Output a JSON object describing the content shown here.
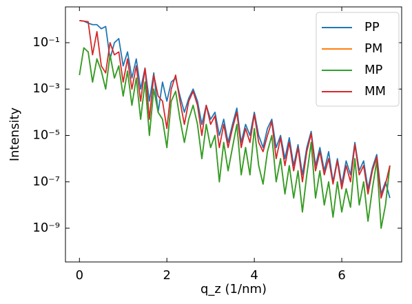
{
  "chart_data": {
    "type": "line",
    "xlabel": "q_z (1/nm)",
    "ylabel": "Intensity",
    "yscale": "log",
    "legend": "upper right",
    "xlim": [
      -0.32,
      7.37
    ],
    "xticks": [
      0,
      2,
      4,
      6
    ],
    "ylim": [
      3.5e-11,
      3.5
    ],
    "yticks": [
      {
        "value": 1e-09,
        "label": "10⁻⁹"
      },
      {
        "value": 1e-07,
        "label": "10⁻⁷"
      },
      {
        "value": 1e-05,
        "label": "10⁻⁵"
      },
      {
        "value": 0.001,
        "label": "10⁻³"
      },
      {
        "value": 0.1,
        "label": "10⁻¹"
      }
    ],
    "x": [
      0,
      0.1,
      0.2,
      0.3,
      0.4,
      0.5,
      0.6,
      0.7,
      0.8,
      0.9,
      1,
      1.1,
      1.2,
      1.3,
      1.4,
      1.5,
      1.6,
      1.7,
      1.8,
      1.9,
      2,
      2.1,
      2.2,
      2.3,
      2.4,
      2.5,
      2.6,
      2.7,
      2.8,
      2.9,
      3,
      3.1,
      3.2,
      3.3,
      3.4,
      3.5,
      3.6,
      3.7,
      3.8,
      3.9,
      4,
      4.1,
      4.2,
      4.3,
      4.4,
      4.5,
      4.6,
      4.7,
      4.8,
      4.9,
      5,
      5.1,
      5.2,
      5.3,
      5.4,
      5.5,
      5.6,
      5.7,
      5.8,
      5.9,
      6,
      6.1,
      6.2,
      6.3,
      6.4,
      6.5,
      6.6,
      6.7,
      6.8,
      6.9,
      7,
      7.1
    ],
    "series": [
      {
        "name": "PP",
        "color": "#1f77b4",
        "values": [
          0.9,
          0.85,
          0.7,
          0.6,
          0.6,
          0.4,
          0.5,
          0.02,
          0.1,
          0.15,
          0.01,
          0.04,
          0.003,
          0.02,
          0.001,
          0.008,
          0.0003,
          0.005,
          0.0001,
          0.002,
          0.0003,
          0.002,
          0.003,
          0.0005,
          0.0001,
          0.0004,
          0.001,
          0.0003,
          3e-05,
          0.0002,
          5e-05,
          0.0001,
          1e-05,
          5e-05,
          5e-06,
          3e-05,
          0.00015,
          5e-06,
          3e-05,
          1e-05,
          0.0001,
          1e-05,
          3e-06,
          2e-05,
          5e-05,
          3e-06,
          1e-05,
          1e-06,
          8e-06,
          5e-07,
          4e-06,
          2e-07,
          3e-06,
          1.5e-05,
          5e-07,
          3e-06,
          3e-07,
          2e-06,
          1e-07,
          1e-06,
          8e-08,
          8e-07,
          2e-07,
          5e-06,
          3e-07,
          8e-07,
          5e-08,
          4e-07,
          1.5e-06,
          3e-08,
          1e-07,
          2e-08
        ]
      },
      {
        "name": "PM",
        "color": "#ff7f0e",
        "values": [
          0.004,
          0.06,
          0.04,
          0.002,
          0.02,
          0.006,
          0.001,
          0.03,
          0.003,
          0.01,
          0.0005,
          0.006,
          0.0002,
          0.003,
          5e-05,
          0.002,
          1e-05,
          0.001,
          0.0001,
          5e-05,
          3e-06,
          0.0003,
          0.0008,
          5e-05,
          5e-06,
          5e-05,
          0.0002,
          3e-05,
          1e-06,
          3e-05,
          3e-06,
          1e-05,
          1e-07,
          5e-06,
          3e-07,
          3e-06,
          3e-05,
          2e-07,
          3e-06,
          2e-07,
          2e-05,
          5e-07,
          8e-08,
          2e-06,
          1e-05,
          1e-07,
          1e-06,
          3e-08,
          5e-07,
          2e-08,
          3e-07,
          5e-09,
          2e-07,
          5e-06,
          2e-08,
          3e-07,
          1e-08,
          1e-07,
          3e-09,
          1e-07,
          5e-09,
          5e-08,
          8e-09,
          1e-06,
          1e-08,
          1e-07,
          2e-09,
          5e-08,
          8e-07,
          1e-09,
          1e-08,
          5e-07
        ]
      },
      {
        "name": "MP",
        "color": "#2ca02c",
        "values": [
          0.004,
          0.06,
          0.04,
          0.002,
          0.02,
          0.006,
          0.001,
          0.03,
          0.003,
          0.01,
          0.0005,
          0.006,
          0.0002,
          0.003,
          5e-05,
          0.002,
          1e-05,
          0.001,
          0.0001,
          5e-05,
          3e-06,
          0.0003,
          0.0008,
          5e-05,
          5e-06,
          5e-05,
          0.0002,
          3e-05,
          1e-06,
          3e-05,
          3e-06,
          1e-05,
          1e-07,
          5e-06,
          3e-07,
          3e-06,
          3e-05,
          2e-07,
          3e-06,
          2e-07,
          2e-05,
          5e-07,
          8e-08,
          2e-06,
          1e-05,
          1e-07,
          1e-06,
          3e-08,
          5e-07,
          2e-08,
          3e-07,
          5e-09,
          2e-07,
          5e-06,
          2e-08,
          3e-07,
          1e-08,
          1e-07,
          3e-09,
          1e-07,
          5e-09,
          5e-08,
          8e-09,
          1e-06,
          1e-08,
          1e-07,
          2e-09,
          5e-08,
          8e-07,
          1e-09,
          1e-08,
          5e-07
        ]
      },
      {
        "name": "MM",
        "color": "#d62728",
        "values": [
          0.9,
          0.85,
          0.8,
          0.03,
          0.3,
          0.01,
          0.005,
          0.1,
          0.03,
          0.04,
          0.002,
          0.02,
          0.001,
          0.01,
          0.0003,
          0.008,
          5e-05,
          0.004,
          0.0005,
          0.0003,
          2e-05,
          0.001,
          0.004,
          0.0003,
          3e-05,
          0.0003,
          0.0008,
          0.0002,
          1e-05,
          0.0002,
          3e-05,
          7e-05,
          3e-06,
          3e-05,
          3e-06,
          2e-05,
          0.0001,
          3e-06,
          2e-05,
          5e-06,
          8e-05,
          5e-06,
          2e-06,
          1e-05,
          4e-05,
          1e-06,
          8e-06,
          5e-07,
          5e-06,
          3e-07,
          3e-06,
          1e-07,
          2e-06,
          1.2e-05,
          3e-07,
          2e-06,
          2e-07,
          1e-06,
          8e-08,
          8e-07,
          5e-08,
          5e-07,
          1e-07,
          4e-06,
          2e-07,
          5e-07,
          3e-08,
          3e-07,
          1.2e-06,
          2e-08,
          8e-08,
          5e-07
        ]
      }
    ]
  }
}
